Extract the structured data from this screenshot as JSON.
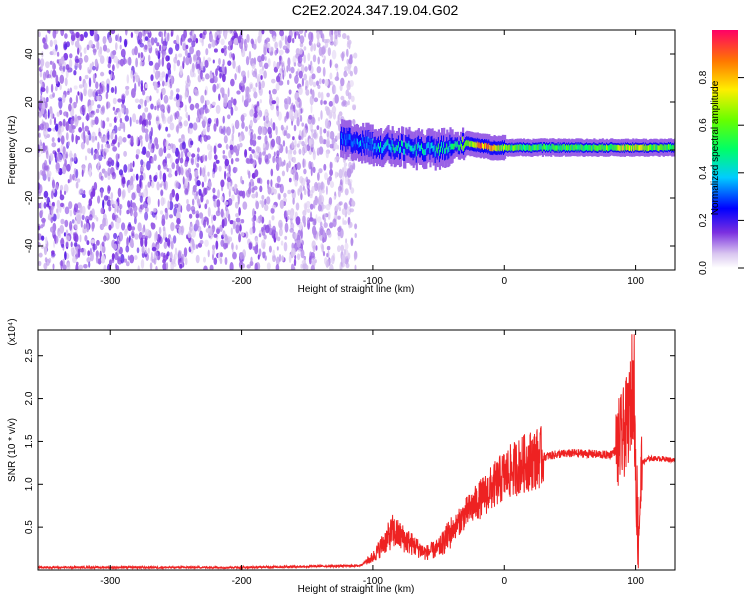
{
  "page": {
    "title": "C2E2.2024.347.19.04.G02"
  },
  "chart_data": [
    {
      "type": "heatmap",
      "name": "spectrogram",
      "xlabel": "Height of straight line (km)",
      "ylabel": "Frequency (Hz)",
      "xlim": [
        -355,
        130
      ],
      "ylim": [
        -50,
        50
      ],
      "x_ticks": [
        -300,
        -200,
        -100,
        0,
        100
      ],
      "y_ticks": [
        -40,
        -20,
        0,
        20,
        40
      ],
      "x_tick_labels": [
        "-300",
        "-200",
        "-100",
        "0",
        "100"
      ],
      "y_tick_labels": [
        "-40",
        "-20",
        "0",
        "20",
        "40"
      ],
      "noise_region_x": [
        -355,
        -113
      ],
      "signal_ridge": [
        {
          "x": -120,
          "f": 4,
          "amp": 0.3
        },
        {
          "x": -100,
          "f": 2,
          "amp": 0.4
        },
        {
          "x": -80,
          "f": 1,
          "amp": 0.45
        },
        {
          "x": -60,
          "f": 0,
          "amp": 0.45
        },
        {
          "x": -40,
          "f": 1,
          "amp": 0.5
        },
        {
          "x": -30,
          "f": 3,
          "amp": 0.6
        },
        {
          "x": -20,
          "f": 2,
          "amp": 0.85
        },
        {
          "x": -10,
          "f": 1,
          "amp": 0.8
        },
        {
          "x": 0,
          "f": 1,
          "amp": 0.6
        },
        {
          "x": 20,
          "f": 1,
          "amp": 0.55
        },
        {
          "x": 50,
          "f": 1,
          "amp": 0.55
        },
        {
          "x": 80,
          "f": 1,
          "amp": 0.6
        },
        {
          "x": 95,
          "f": 1,
          "amp": 0.7
        },
        {
          "x": 130,
          "f": 1,
          "amp": 0.55
        }
      ],
      "colorbar": {
        "label": "Normalized spectral amplitude",
        "range": [
          0,
          1
        ],
        "ticks": [
          0.0,
          0.2,
          0.4,
          0.6,
          0.8
        ],
        "tick_labels": [
          "0.0",
          "0.2",
          "0.4",
          "0.6",
          "0.8"
        ]
      }
    },
    {
      "type": "line",
      "name": "snr",
      "xlabel": "Height of straight line (km)",
      "ylabel": "SNR (10 * v/v)",
      "y_multiplier_label": "(x10⁴)",
      "color": "#ee2222",
      "xlim": [
        -355,
        130
      ],
      "ylim": [
        0,
        2.8
      ],
      "x_ticks": [
        -300,
        -200,
        -100,
        0,
        100
      ],
      "y_ticks": [
        0.5,
        1.0,
        1.5,
        2.0,
        2.5
      ],
      "x_tick_labels": [
        "-300",
        "-200",
        "-100",
        "0",
        "100"
      ],
      "y_tick_labels": [
        "0.5",
        "1.0",
        "1.5",
        "2.0",
        "2.5"
      ],
      "series": [
        {
          "x": [
            -355,
            -200,
            -110,
            -100,
            -90,
            -85,
            -80,
            -70,
            -60,
            -50,
            -40,
            -30,
            -20,
            -10,
            0,
            10,
            20,
            30,
            40,
            50,
            60,
            70,
            80,
            85,
            90,
            95,
            98,
            100,
            102,
            105,
            110,
            120,
            130
          ],
          "y": [
            0.03,
            0.03,
            0.05,
            0.15,
            0.35,
            0.45,
            0.4,
            0.3,
            0.2,
            0.25,
            0.45,
            0.65,
            0.8,
            0.95,
            1.1,
            1.2,
            1.28,
            1.32,
            1.35,
            1.36,
            1.36,
            1.35,
            1.34,
            1.4,
            1.55,
            1.8,
            2.1,
            1.2,
            0.4,
            1.25,
            1.3,
            1.3,
            1.28
          ]
        }
      ]
    }
  ]
}
